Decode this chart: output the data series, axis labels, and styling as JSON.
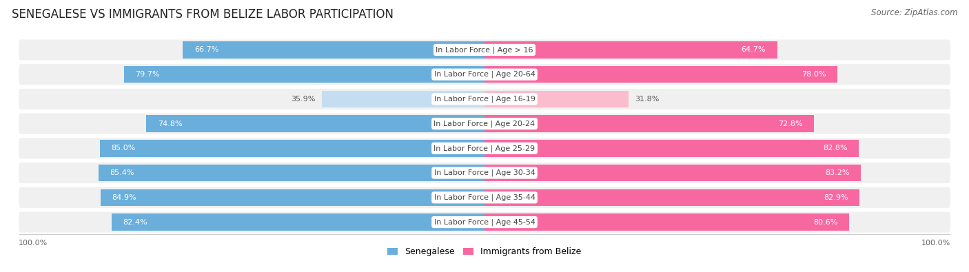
{
  "title": "SENEGALESE VS IMMIGRANTS FROM BELIZE LABOR PARTICIPATION",
  "source": "Source: ZipAtlas.com",
  "categories": [
    "In Labor Force | Age > 16",
    "In Labor Force | Age 20-64",
    "In Labor Force | Age 16-19",
    "In Labor Force | Age 20-24",
    "In Labor Force | Age 25-29",
    "In Labor Force | Age 30-34",
    "In Labor Force | Age 35-44",
    "In Labor Force | Age 45-54"
  ],
  "senegalese_values": [
    66.7,
    79.7,
    35.9,
    74.8,
    85.0,
    85.4,
    84.9,
    82.4
  ],
  "belize_values": [
    64.7,
    78.0,
    31.8,
    72.8,
    82.8,
    83.2,
    82.9,
    80.6
  ],
  "senegalese_color": "#6aaedb",
  "senegalese_light_color": "#c5ddf0",
  "belize_color": "#f768a1",
  "belize_light_color": "#fbbccd",
  "row_bg_color": "#f0f0f0",
  "row_bg_color_alt": "#e8e8e8",
  "legend_label_senegalese": "Senegalese",
  "legend_label_belize": "Immigrants from Belize",
  "title_fontsize": 12,
  "source_fontsize": 8.5,
  "bar_label_fontsize": 8,
  "category_fontsize": 8,
  "axis_label_fontsize": 8,
  "threshold": 50
}
